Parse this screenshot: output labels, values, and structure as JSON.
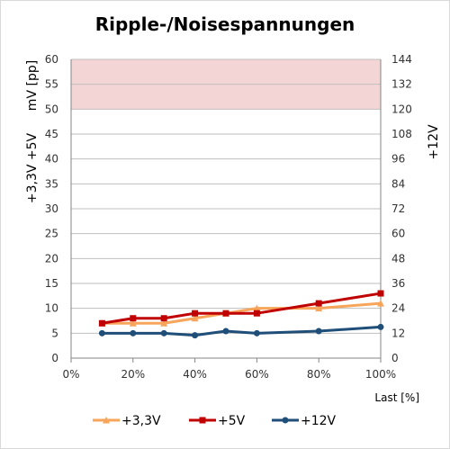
{
  "chart_data": {
    "type": "line",
    "title": "Ripple-/Noisespannungen",
    "xlabel": "Last [%]",
    "ylabel_left": "+3,3V +5V",
    "ylabel_left_unit": "mV [pp]",
    "ylabel_right": "+12V",
    "xlim": [
      0,
      100
    ],
    "ylim": [
      0,
      60
    ],
    "ylim_right": [
      0,
      144
    ],
    "x_ticks": [
      "0%",
      "20%",
      "40%",
      "60%",
      "80%",
      "100%"
    ],
    "x_tick_values": [
      0,
      20,
      40,
      60,
      80,
      100
    ],
    "y_ticks": [
      "0",
      "5",
      "10",
      "15",
      "20",
      "25",
      "30",
      "35",
      "40",
      "45",
      "50",
      "55",
      "60"
    ],
    "y_tick_values": [
      0,
      5,
      10,
      15,
      20,
      25,
      30,
      35,
      40,
      45,
      50,
      55,
      60
    ],
    "y_ticks_right": [
      "0",
      "12",
      "24",
      "36",
      "48",
      "60",
      "72",
      "84",
      "96",
      "108",
      "120",
      "132",
      "144"
    ],
    "y_tick_values_right": [
      0,
      12,
      24,
      36,
      48,
      60,
      72,
      84,
      96,
      108,
      120,
      132,
      144
    ],
    "limit_band": {
      "from": 50,
      "to": 60,
      "color": "#f4d5d5"
    },
    "grid": true,
    "legend_position": "bottom",
    "x": [
      10,
      20,
      30,
      40,
      50,
      60,
      80,
      100
    ],
    "series": [
      {
        "name": "+3,3V",
        "color": "#f7a55a",
        "marker": "triangle",
        "axis": "left",
        "values": [
          7,
          7,
          7,
          8,
          9,
          10,
          10,
          11
        ]
      },
      {
        "name": "+5V",
        "color": "#c00000",
        "marker": "square",
        "axis": "left",
        "values": [
          7,
          8,
          8,
          9,
          9,
          9,
          11,
          13
        ]
      },
      {
        "name": "+12V",
        "color": "#1f4e79",
        "marker": "circle",
        "axis": "right",
        "values": [
          12,
          12,
          12,
          11,
          13,
          12,
          13,
          15
        ]
      }
    ]
  }
}
